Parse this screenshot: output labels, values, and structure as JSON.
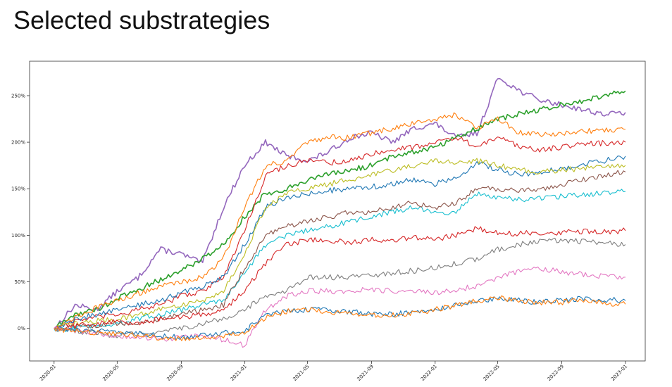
{
  "slide": {
    "title": "Selected substrategies"
  },
  "chart_data": {
    "type": "line",
    "ylim": [
      -35,
      287
    ],
    "xlim": [
      "2019-11-15",
      "2023-02-08"
    ],
    "grid": false,
    "x_ticks": [
      "2020-01",
      "2020-05",
      "2020-09",
      "2021-01",
      "2021-05",
      "2021-09",
      "2022-01",
      "2022-05",
      "2022-09",
      "2023-01"
    ],
    "y_ticks": [
      0,
      50,
      100,
      150,
      200,
      250
    ],
    "y_tick_labels": [
      "0%",
      "50%",
      "100%",
      "150%",
      "200%",
      "250%"
    ],
    "series": [
      {
        "color": "#9467bd",
        "values": [
          0,
          25,
          20,
          40,
          55,
          85,
          80,
          70,
          130,
          175,
          200,
          185,
          180,
          190,
          205,
          210,
          200,
          215,
          220,
          205,
          210,
          270,
          255,
          245,
          240,
          235,
          230,
          232
        ]
      },
      {
        "color": "#2ca02c",
        "values": [
          0,
          15,
          20,
          32,
          42,
          52,
          62,
          75,
          90,
          120,
          145,
          150,
          160,
          165,
          170,
          175,
          185,
          190,
          195,
          205,
          215,
          225,
          230,
          235,
          240,
          245,
          250,
          255
        ]
      },
      {
        "color": "#ff7f0e",
        "values": [
          0,
          12,
          22,
          30,
          38,
          45,
          50,
          55,
          75,
          130,
          175,
          180,
          200,
          205,
          205,
          210,
          215,
          220,
          225,
          230,
          215,
          225,
          210,
          208,
          210,
          212,
          213,
          214
        ]
      },
      {
        "color": "#d62728",
        "values": [
          0,
          8,
          12,
          15,
          20,
          25,
          35,
          40,
          55,
          105,
          165,
          175,
          180,
          178,
          180,
          188,
          192,
          195,
          200,
          205,
          195,
          205,
          195,
          192,
          195,
          198,
          199,
          200
        ]
      },
      {
        "color": "#1f77b4",
        "values": [
          0,
          10,
          15,
          20,
          25,
          30,
          38,
          45,
          55,
          90,
          130,
          140,
          145,
          148,
          150,
          152,
          155,
          160,
          155,
          162,
          178,
          170,
          165,
          168,
          172,
          176,
          180,
          185
        ]
      },
      {
        "color": "#bcbd22",
        "values": [
          0,
          5,
          8,
          10,
          15,
          20,
          25,
          30,
          40,
          80,
          130,
          145,
          150,
          155,
          160,
          165,
          170,
          175,
          180,
          178,
          180,
          175,
          170,
          168,
          170,
          172,
          173,
          175
        ]
      },
      {
        "color": "#17becf",
        "values": [
          -2,
          0,
          3,
          5,
          10,
          15,
          20,
          25,
          30,
          60,
          90,
          100,
          105,
          110,
          115,
          120,
          125,
          130,
          125,
          125,
          145,
          140,
          138,
          140,
          142,
          144,
          145,
          147
        ]
      },
      {
        "color": "#8c564b",
        "values": [
          0,
          2,
          3,
          5,
          5,
          10,
          15,
          20,
          25,
          65,
          100,
          110,
          115,
          120,
          125,
          125,
          130,
          135,
          130,
          135,
          150,
          150,
          148,
          150,
          155,
          160,
          165,
          168
        ]
      },
      {
        "color": "#d62728",
        "values": [
          0,
          3,
          5,
          8,
          5,
          10,
          12,
          15,
          20,
          40,
          70,
          90,
          95,
          95,
          92,
          95,
          95,
          98,
          96,
          100,
          108,
          102,
          102,
          103,
          103,
          104,
          104,
          105
        ]
      },
      {
        "color": "#7f7f7f",
        "values": [
          0,
          -3,
          -5,
          -8,
          -5,
          -5,
          0,
          5,
          10,
          20,
          35,
          40,
          55,
          55,
          55,
          57,
          60,
          62,
          65,
          70,
          75,
          85,
          90,
          95,
          95,
          93,
          92,
          90
        ]
      },
      {
        "color": "#e377c2",
        "values": [
          0,
          -3,
          -5,
          -8,
          -10,
          -12,
          -10,
          -8,
          -12,
          -18,
          20,
          35,
          40,
          40,
          40,
          42,
          40,
          40,
          38,
          42,
          45,
          55,
          62,
          65,
          60,
          58,
          56,
          55
        ]
      },
      {
        "color": "#1f77b4",
        "values": [
          0,
          -2,
          -3,
          -3,
          -5,
          -8,
          -10,
          -8,
          -5,
          -3,
          15,
          18,
          20,
          20,
          18,
          15,
          15,
          18,
          20,
          25,
          30,
          32,
          30,
          28,
          30,
          32,
          31,
          30
        ]
      },
      {
        "color": "#ff7f0e",
        "values": [
          0,
          -3,
          -5,
          -5,
          -8,
          -10,
          -12,
          -10,
          -8,
          -5,
          12,
          18,
          20,
          18,
          16,
          15,
          14,
          17,
          20,
          25,
          30,
          33,
          30,
          28,
          28,
          30,
          27,
          26
        ]
      }
    ]
  }
}
